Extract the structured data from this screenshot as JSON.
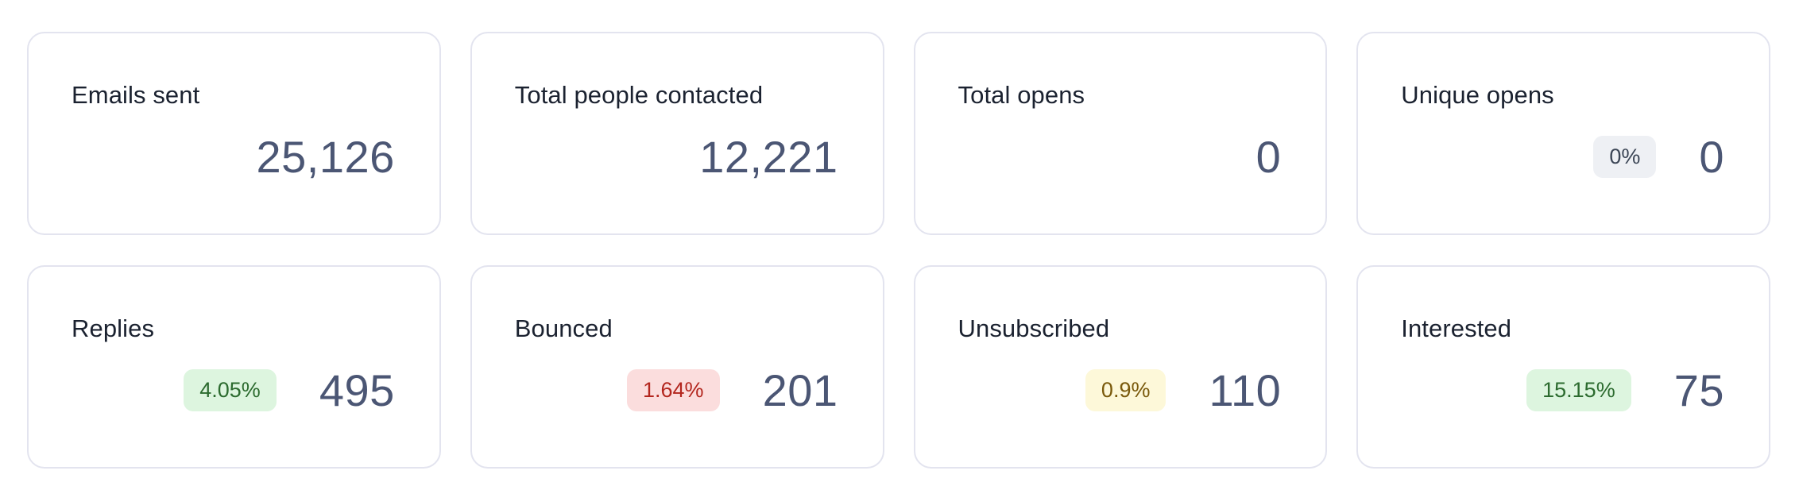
{
  "stats": [
    {
      "title": "Emails sent",
      "value": "25,126",
      "badge": null,
      "badge_tone": null
    },
    {
      "title": "Total people contacted",
      "value": "12,221",
      "badge": null,
      "badge_tone": null
    },
    {
      "title": "Total opens",
      "value": "0",
      "badge": null,
      "badge_tone": null
    },
    {
      "title": "Unique opens",
      "value": "0",
      "badge": "0%",
      "badge_tone": "neutral"
    },
    {
      "title": "Replies",
      "value": "495",
      "badge": "4.05%",
      "badge_tone": "green"
    },
    {
      "title": "Bounced",
      "value": "201",
      "badge": "1.64%",
      "badge_tone": "red"
    },
    {
      "title": "Unsubscribed",
      "value": "110",
      "badge": "0.9%",
      "badge_tone": "yellow"
    },
    {
      "title": "Interested",
      "value": "75",
      "badge": "15.15%",
      "badge_tone": "green"
    }
  ],
  "colors": {
    "card_border": "#e3e4ef",
    "title_text": "#1b2230",
    "value_text": "#4b5674",
    "badge_neutral_bg": "#eef0f4",
    "badge_green_bg": "#ddf5df",
    "badge_red_bg": "#fbdddd",
    "badge_yellow_bg": "#fdf8d9"
  }
}
